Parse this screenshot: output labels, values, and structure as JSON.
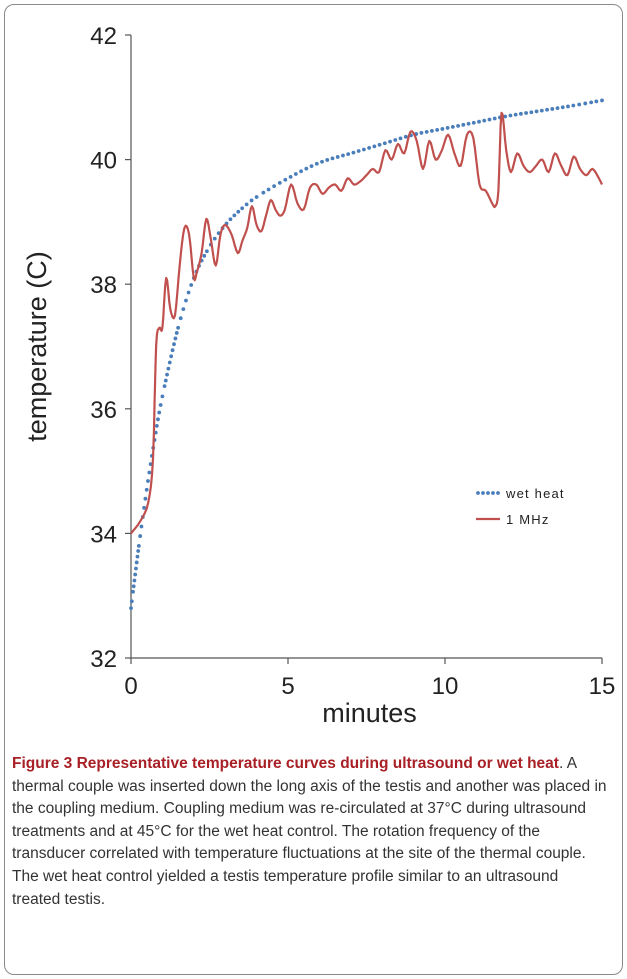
{
  "chart_data": {
    "type": "line",
    "xlabel": "minutes",
    "ylabel": "temperature (C)",
    "xlim": [
      0,
      15
    ],
    "ylim": [
      32,
      42
    ],
    "xticks": [
      0,
      5,
      10,
      15
    ],
    "yticks": [
      32,
      34,
      36,
      38,
      40,
      42
    ],
    "grid": false,
    "legend_position": "center-right",
    "series": [
      {
        "name": "wet heat",
        "style": "dotted",
        "color": "#4a7ebb",
        "x": [
          0,
          0.25,
          0.5,
          0.75,
          1.0,
          1.5,
          2.0,
          2.5,
          3.0,
          3.5,
          4.0,
          5.0,
          6.0,
          7.0,
          8.0,
          9.0,
          10.0,
          11.0,
          12.0,
          13.0,
          14.0,
          15.0
        ],
        "y": [
          32.8,
          33.8,
          34.7,
          35.5,
          36.2,
          37.3,
          38.1,
          38.6,
          38.95,
          39.2,
          39.4,
          39.7,
          39.95,
          40.1,
          40.25,
          40.4,
          40.5,
          40.6,
          40.7,
          40.78,
          40.86,
          40.95
        ]
      },
      {
        "name": "1 MHz",
        "style": "solid",
        "color": "#c0504d",
        "x": [
          0,
          0.3,
          0.55,
          0.7,
          0.8,
          0.9,
          1.0,
          1.12,
          1.25,
          1.4,
          1.55,
          1.7,
          1.85,
          2.0,
          2.1,
          2.25,
          2.4,
          2.55,
          2.7,
          2.85,
          3.0,
          3.2,
          3.4,
          3.55,
          3.7,
          3.85,
          4.0,
          4.15,
          4.3,
          4.45,
          4.6,
          4.75,
          4.9,
          5.1,
          5.3,
          5.5,
          5.7,
          5.9,
          6.1,
          6.3,
          6.5,
          6.7,
          6.9,
          7.1,
          7.3,
          7.5,
          7.7,
          7.9,
          8.1,
          8.3,
          8.5,
          8.7,
          8.9,
          9.1,
          9.3,
          9.5,
          9.7,
          9.9,
          10.1,
          10.3,
          10.5,
          10.7,
          10.9,
          11.1,
          11.3,
          11.5,
          11.6,
          11.7,
          11.8,
          11.95,
          12.1,
          12.3,
          12.5,
          12.7,
          12.9,
          13.1,
          13.3,
          13.5,
          13.7,
          13.9,
          14.1,
          14.3,
          14.5,
          14.7,
          14.9,
          15.0
        ],
        "y": [
          34.0,
          34.2,
          34.5,
          35.2,
          37.0,
          37.3,
          37.3,
          38.1,
          37.6,
          37.5,
          38.3,
          38.9,
          38.8,
          38.1,
          38.2,
          38.5,
          39.05,
          38.7,
          38.3,
          38.8,
          38.95,
          38.8,
          38.5,
          38.7,
          38.9,
          39.25,
          38.95,
          38.85,
          39.1,
          39.35,
          39.2,
          39.1,
          39.2,
          39.6,
          39.3,
          39.2,
          39.55,
          39.6,
          39.45,
          39.55,
          39.6,
          39.5,
          39.7,
          39.6,
          39.65,
          39.75,
          39.85,
          39.8,
          40.15,
          40.0,
          40.25,
          40.1,
          40.45,
          40.3,
          39.85,
          40.3,
          40.0,
          40.15,
          40.4,
          40.1,
          39.9,
          40.4,
          40.35,
          39.6,
          39.5,
          39.3,
          39.25,
          39.5,
          40.75,
          40.15,
          39.8,
          40.1,
          39.9,
          39.8,
          39.9,
          40.0,
          39.8,
          40.1,
          39.9,
          39.75,
          40.05,
          39.85,
          39.75,
          39.85,
          39.7,
          39.6
        ]
      }
    ]
  },
  "caption": {
    "title": "Figure 3 Representative temperature curves during ultrasound or wet heat",
    "text": ". A thermal couple was inserted down the long axis of the testis and another was placed in the coupling medium. Coupling medium was re-circulated at 37°C during ultrasound treatments and at 45°C for the wet heat control. The rotation frequency of the transducer correlated with temperature fluctuations at the site of the thermal couple. The wet heat control yielded a testis temperature profile similar to an ultrasound treated testis."
  }
}
